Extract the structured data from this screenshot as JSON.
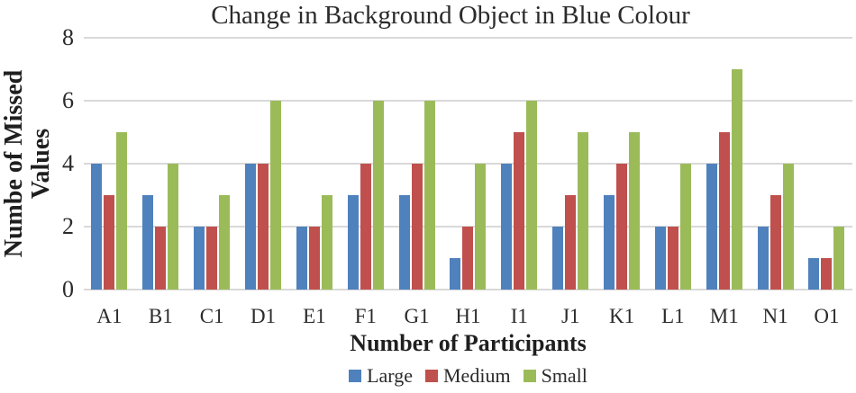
{
  "chart_data": {
    "type": "bar",
    "title": "Change in Background Object in Blue Colour",
    "xlabel": "Number of Participants",
    "ylabel": "Numbe of Missed Values",
    "ylabel_lines": [
      "Numbe of Missed",
      "Values"
    ],
    "categories": [
      "A1",
      "B1",
      "C1",
      "D1",
      "E1",
      "F1",
      "G1",
      "H1",
      "I1",
      "J1",
      "K1",
      "L1",
      "M1",
      "N1",
      "O1"
    ],
    "series": [
      {
        "name": "Large",
        "color": "#4F81BD",
        "values": [
          4,
          3,
          2,
          4,
          2,
          3,
          3,
          1,
          4,
          2,
          3,
          2,
          4,
          2,
          1
        ]
      },
      {
        "name": "Medium",
        "color": "#C0504D",
        "values": [
          3,
          2,
          2,
          4,
          2,
          4,
          4,
          2,
          5,
          3,
          4,
          2,
          5,
          3,
          1
        ]
      },
      {
        "name": "Small",
        "color": "#9BBB59",
        "values": [
          5,
          4,
          3,
          6,
          3,
          6,
          6,
          4,
          6,
          5,
          5,
          4,
          7,
          4,
          2
        ]
      }
    ],
    "ylim": [
      0,
      8
    ],
    "yticks": [
      8,
      6,
      4,
      2,
      0
    ],
    "grid": true,
    "legend_position": "bottom"
  },
  "colors": {
    "gridline": "#D9D9D9",
    "text": "#262626",
    "accent_blue": "#4F81BD",
    "accent_red": "#C0504D",
    "accent_green": "#9BBB59"
  }
}
